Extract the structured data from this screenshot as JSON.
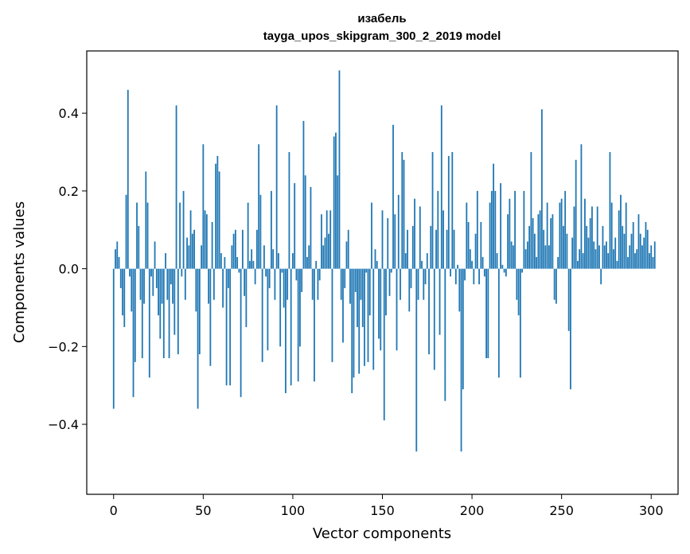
{
  "chart_data": {
    "type": "bar",
    "title": "изабель",
    "subtitle": "tayga_upos_skipgram_300_2_2019 model",
    "xlabel": "Vector components",
    "ylabel": "Components values",
    "xlim": [
      -15,
      315
    ],
    "ylim": [
      -0.58,
      0.56
    ],
    "xticks": [
      0,
      50,
      100,
      150,
      200,
      250,
      300
    ],
    "xtick_labels": [
      "0",
      "50",
      "100",
      "150",
      "200",
      "250",
      "300"
    ],
    "yticks": [
      -0.4,
      -0.2,
      0.0,
      0.2,
      0.4
    ],
    "ytick_labels": [
      "−0.4",
      "−0.2",
      "0.0",
      "0.2",
      "0.4"
    ],
    "grid": false,
    "bar_color": "#1f77b4",
    "values": [
      -0.36,
      0.05,
      0.07,
      0.03,
      -0.05,
      -0.12,
      -0.15,
      0.19,
      0.46,
      -0.02,
      -0.11,
      -0.33,
      -0.24,
      0.17,
      0.11,
      -0.08,
      -0.23,
      -0.09,
      0.25,
      0.17,
      -0.28,
      -0.02,
      -0.07,
      0.07,
      -0.05,
      -0.12,
      -0.18,
      -0.09,
      -0.23,
      0.04,
      -0.08,
      -0.23,
      -0.04,
      -0.09,
      -0.17,
      0.42,
      -0.22,
      0.17,
      -0.02,
      0.2,
      -0.08,
      0.08,
      0.06,
      0.15,
      0.09,
      0.1,
      -0.11,
      -0.36,
      -0.22,
      0.06,
      0.32,
      0.15,
      0.14,
      -0.09,
      -0.25,
      0.12,
      -0.08,
      0.27,
      0.29,
      0.25,
      0.04,
      -0.1,
      0.03,
      -0.3,
      -0.05,
      -0.3,
      0.06,
      0.09,
      0.1,
      0.03,
      -0.01,
      -0.33,
      0.1,
      -0.07,
      -0.15,
      0.17,
      0.02,
      0.05,
      0.02,
      -0.04,
      0.1,
      0.32,
      0.19,
      -0.24,
      0.06,
      -0.02,
      -0.21,
      -0.05,
      0.2,
      0.05,
      -0.08,
      0.42,
      0.04,
      -0.2,
      -0.01,
      -0.1,
      -0.32,
      -0.08,
      0.3,
      -0.3,
      0.04,
      0.22,
      -0.03,
      -0.29,
      -0.2,
      -0.06,
      0.38,
      0.24,
      0.03,
      0.06,
      0.21,
      -0.08,
      -0.29,
      0.02,
      -0.08,
      -0.03,
      0.14,
      0.06,
      0.08,
      0.15,
      0.09,
      0.15,
      -0.24,
      0.34,
      0.35,
      0.24,
      0.51,
      -0.08,
      -0.19,
      -0.05,
      0.07,
      0.1,
      -0.09,
      -0.32,
      -0.28,
      -0.06,
      -0.15,
      -0.27,
      -0.08,
      -0.15,
      -0.25,
      -0.01,
      -0.24,
      -0.12,
      0.17,
      -0.26,
      0.05,
      0.02,
      -0.18,
      -0.21,
      0.15,
      -0.39,
      -0.12,
      0.13,
      -0.07,
      -0.01,
      0.37,
      0.14,
      -0.21,
      0.19,
      -0.08,
      0.3,
      0.28,
      0.04,
      0.1,
      -0.11,
      -0.05,
      0.11,
      0.18,
      -0.47,
      -0.08,
      0.16,
      0.02,
      -0.08,
      -0.04,
      0.04,
      -0.22,
      0.11,
      0.3,
      -0.26,
      0.1,
      0.2,
      -0.17,
      0.42,
      0.15,
      -0.34,
      0.1,
      0.29,
      -0.02,
      0.3,
      0.1,
      -0.04,
      0.01,
      -0.11,
      -0.47,
      -0.31,
      -0.03,
      0.17,
      0.12,
      0.05,
      0.02,
      -0.04,
      0.09,
      0.2,
      -0.04,
      0.12,
      0.03,
      -0.02,
      -0.23,
      -0.23,
      0.17,
      0.2,
      0.27,
      0.2,
      0.04,
      -0.28,
      0.22,
      0.01,
      -0.01,
      -0.02,
      0.14,
      0.18,
      0.07,
      0.06,
      0.2,
      -0.08,
      -0.12,
      -0.28,
      -0.01,
      0.2,
      0.05,
      0.07,
      0.11,
      0.3,
      0.13,
      0.09,
      0.03,
      0.14,
      0.15,
      0.41,
      0.1,
      0.06,
      0.17,
      0.06,
      0.13,
      0.14,
      -0.08,
      -0.09,
      0.03,
      0.17,
      0.18,
      0.11,
      0.2,
      0.09,
      -0.16,
      -0.31,
      0.08,
      0.16,
      0.28,
      0.02,
      0.05,
      0.32,
      0.04,
      0.18,
      0.11,
      0.08,
      0.13,
      0.16,
      0.07,
      0.05,
      0.16,
      0.06,
      -0.04,
      0.11,
      0.06,
      0.07,
      0.04,
      0.3,
      0.17,
      0.05,
      0.08,
      0.02,
      0.15,
      0.19,
      0.11,
      0.09,
      0.17,
      0.03,
      0.06,
      0.09,
      0.12,
      0.04,
      0.05,
      0.14,
      0.09,
      0.06,
      0.08,
      0.12,
      0.1,
      0.04,
      0.06,
      0.03,
      0.07
    ]
  }
}
